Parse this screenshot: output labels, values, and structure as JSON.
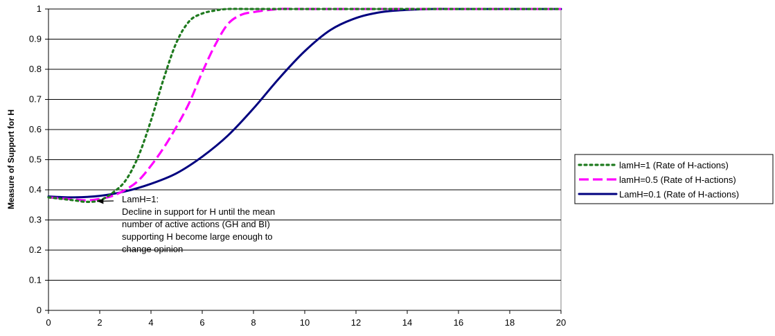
{
  "chart_data": {
    "type": "line",
    "title": "",
    "xlabel": "",
    "ylabel": "Measure of Support for H",
    "xlim": [
      0,
      20
    ],
    "ylim": [
      0,
      1
    ],
    "x_ticks": [
      0,
      2,
      4,
      6,
      8,
      10,
      12,
      14,
      16,
      18,
      20
    ],
    "y_ticks": [
      0,
      0.1,
      0.2,
      0.3,
      0.4,
      0.5,
      0.6,
      0.7,
      0.8,
      0.9,
      1
    ],
    "grid": "horizontal",
    "legend_position": "right",
    "series": [
      {
        "name": "lamH=1 (Rate of H-actions)",
        "color": "#1f7a1f",
        "dash": "dotted",
        "x": [
          0,
          1,
          1.5,
          2,
          2.5,
          3,
          3.5,
          4,
          4.5,
          5,
          5.5,
          6,
          6.5,
          7,
          8,
          10,
          14,
          20
        ],
        "y": [
          0.375,
          0.365,
          0.36,
          0.365,
          0.39,
          0.43,
          0.51,
          0.63,
          0.77,
          0.89,
          0.96,
          0.985,
          0.995,
          1,
          1,
          1,
          1,
          1
        ]
      },
      {
        "name": "lamH=0.5 (Rate of H-actions)",
        "color": "#ff00ff",
        "dash": "dashed",
        "x": [
          0,
          1,
          1.5,
          2,
          2.5,
          3,
          3.5,
          4,
          4.5,
          5,
          5.5,
          6,
          6.5,
          7,
          7.5,
          8,
          9,
          10,
          14,
          20
        ],
        "y": [
          0.375,
          0.368,
          0.365,
          0.37,
          0.38,
          0.4,
          0.43,
          0.48,
          0.54,
          0.61,
          0.69,
          0.79,
          0.88,
          0.95,
          0.98,
          0.99,
          1,
          1,
          1,
          1
        ]
      },
      {
        "name": "LamH=0.1 (Rate of H-actions)",
        "color": "#00007f",
        "dash": "solid",
        "x": [
          0,
          1,
          2,
          3,
          4,
          5,
          6,
          7,
          8,
          9,
          10,
          11,
          12,
          13,
          14,
          15,
          16,
          20
        ],
        "y": [
          0.378,
          0.375,
          0.38,
          0.395,
          0.42,
          0.455,
          0.51,
          0.58,
          0.67,
          0.77,
          0.86,
          0.93,
          0.97,
          0.99,
          0.997,
          1,
          1,
          1
        ]
      }
    ],
    "annotation": {
      "lines": [
        "LamH=1:",
        "Decline in support for H until the mean",
        "number of active actions (GH and BI)",
        "supporting H become large enough to",
        "change opinion"
      ],
      "arrow_target": {
        "x": 1.9,
        "y": 0.362
      }
    }
  }
}
